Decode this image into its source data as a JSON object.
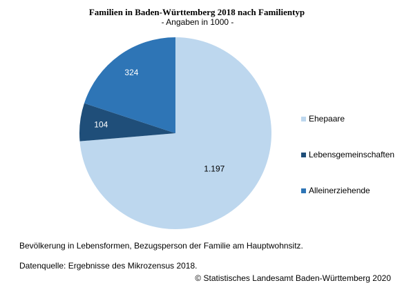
{
  "chart_data": {
    "type": "pie",
    "title": "Familien in Baden-Württemberg 2018 nach Familientyp",
    "subtitle": "- Angaben in 1000 -",
    "categories": [
      "Ehepaare",
      "Lebensgemeinschaften",
      "Alleinerziehende"
    ],
    "values": [
      1197,
      104,
      324
    ],
    "value_labels": [
      "1.197",
      "104",
      "324"
    ],
    "colors": [
      "#bdd7ee",
      "#1f4e79",
      "#2e75b6"
    ],
    "label_colors": [
      "#000000",
      "#ffffff",
      "#ffffff"
    ],
    "legend_position": "right"
  },
  "notes": {
    "line1": "Bevölkerung in Lebensformen, Bezugsperson der Familie am Hauptwohnsitz.",
    "line2": "Datenquelle: Ergebnisse des Mikrozensus 2018."
  },
  "copyright": "© Statistisches Landesamt Baden-Württemberg 2020"
}
